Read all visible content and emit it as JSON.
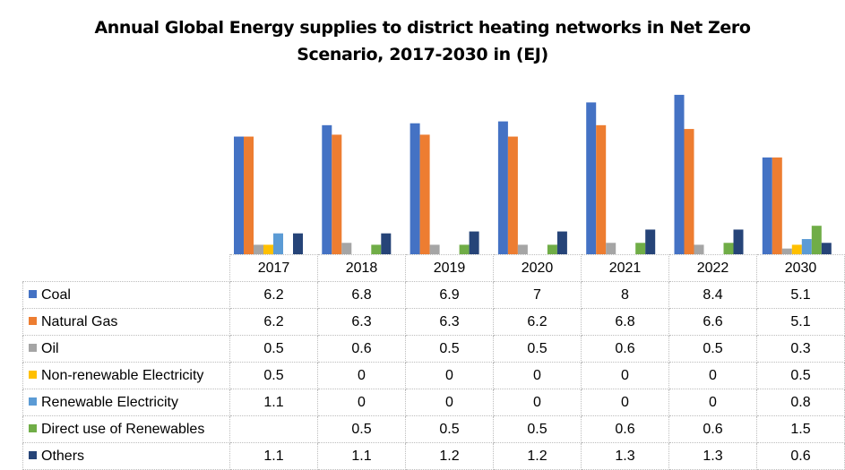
{
  "chart_data": {
    "type": "bar",
    "title": "Annual  Global Energy supplies to district heating networks in Net Zero",
    "subtitle": "Scenario, 2017-2030 in (EJ)",
    "xlabel": "",
    "ylabel": "",
    "ylim": [
      0,
      9
    ],
    "grid": false,
    "legend": "data-table-left",
    "categories": [
      "2017",
      "2018",
      "2019",
      "2020",
      "2021",
      "2022",
      "2030"
    ],
    "series": [
      {
        "name": "Coal",
        "color": "#4472c4",
        "values": [
          6.2,
          6.8,
          6.9,
          7,
          8,
          8.4,
          5.1
        ],
        "labels": [
          "6.2",
          "6.8",
          "6.9",
          "7",
          "8",
          "8.4",
          "5.1"
        ]
      },
      {
        "name": "Natural Gas",
        "color": "#ed7d31",
        "values": [
          6.2,
          6.3,
          6.3,
          6.2,
          6.8,
          6.6,
          5.1
        ],
        "labels": [
          "6.2",
          "6.3",
          "6.3",
          "6.2",
          "6.8",
          "6.6",
          "5.1"
        ]
      },
      {
        "name": "Oil",
        "color": "#a5a5a5",
        "values": [
          0.5,
          0.6,
          0.5,
          0.5,
          0.6,
          0.5,
          0.3
        ],
        "labels": [
          "0.5",
          "0.6",
          "0.5",
          "0.5",
          "0.6",
          "0.5",
          "0.3"
        ]
      },
      {
        "name": "Non-renewable Electricity",
        "color": "#ffc000",
        "values": [
          0.5,
          0,
          0,
          0,
          0,
          0,
          0.5
        ],
        "labels": [
          "0.5",
          "0",
          "0",
          "0",
          "0",
          "0",
          "0.5"
        ]
      },
      {
        "name": "Renewable Electricity",
        "color": "#5b9bd5",
        "values": [
          1.1,
          0,
          0,
          0,
          0,
          0,
          0.8
        ],
        "labels": [
          "1.1",
          "0",
          "0",
          "0",
          "0",
          "0",
          "0.8"
        ]
      },
      {
        "name": "Direct use of Renewables",
        "color": "#70ad47",
        "values": [
          null,
          0.5,
          0.5,
          0.5,
          0.6,
          0.6,
          1.5
        ],
        "labels": [
          "",
          "0.5",
          "0.5",
          "0.5",
          "0.6",
          "0.6",
          "1.5"
        ]
      },
      {
        "name": "Others",
        "color": "#264478",
        "values": [
          1.1,
          1.1,
          1.2,
          1.2,
          1.3,
          1.3,
          0.6
        ],
        "labels": [
          "1.1",
          "1.1",
          "1.2",
          "1.2",
          "1.3",
          "1.3",
          "0.6"
        ]
      }
    ]
  }
}
